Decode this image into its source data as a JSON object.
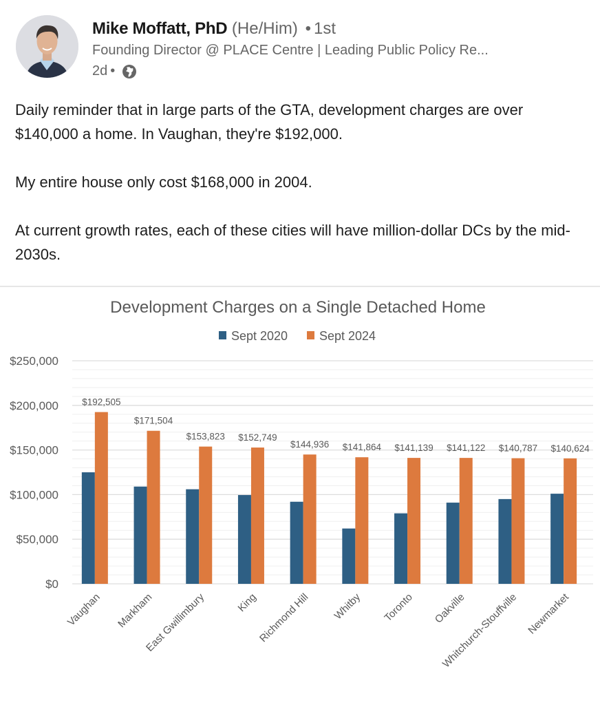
{
  "post": {
    "author": {
      "name": "Mike Moffatt, PhD",
      "pronouns": "(He/Him)",
      "separator": "•",
      "degree": "1st",
      "headline": "Founding Director @ PLACE Centre | Leading Public Policy Re...",
      "posted_ago": "2d",
      "meta_separator": "•",
      "visibility_icon": "globe-icon",
      "avatar_icon": "profile-photo"
    },
    "paragraphs": [
      "Daily reminder that in large parts of the GTA, development charges are over $140,000 a home. In Vaughan, they're $192,000.",
      "My entire house only cost $168,000 in 2004.",
      "At current growth rates, each of these cities will have million-dollar DCs by the mid-2030s."
    ]
  },
  "colors": {
    "sept2020": "#2e5f84",
    "sept2024": "#dd7a3e",
    "grid": "#e3e3e3",
    "axis_text": "#595959"
  },
  "chart_data": {
    "type": "bar",
    "title": "Development Charges on a Single Detached Home",
    "xlabel": "",
    "ylabel": "",
    "ylim": [
      0,
      250000
    ],
    "yticks": [
      0,
      50000,
      100000,
      150000,
      200000,
      250000
    ],
    "ytick_labels": [
      "$0",
      "$50,000",
      "$100,000",
      "$150,000",
      "$200,000",
      "$250,000"
    ],
    "minor_grid_step": 10000,
    "grid": true,
    "legend_position": "top-center",
    "categories": [
      "Vaughan",
      "Markham",
      "East Gwillimbury",
      "King",
      "Richmond Hill",
      "Whitby",
      "Toronto",
      "Oakville",
      "Whitchurch-Stouffville",
      "Newmarket"
    ],
    "series": [
      {
        "name": "Sept 2020",
        "values": [
          125000,
          109000,
          106000,
          99500,
          92000,
          62000,
          79000,
          91000,
          95000,
          101000
        ],
        "data_labels": null
      },
      {
        "name": "Sept 2024",
        "values": [
          192505,
          171504,
          153823,
          152749,
          144936,
          141864,
          141139,
          141122,
          140787,
          140624
        ],
        "data_labels": [
          "$192,505",
          "$171,504",
          "$153,823",
          "$152,749",
          "$144,936",
          "$141,864",
          "$141,139",
          "$141,122",
          "$140,787",
          "$140,624"
        ]
      }
    ]
  }
}
